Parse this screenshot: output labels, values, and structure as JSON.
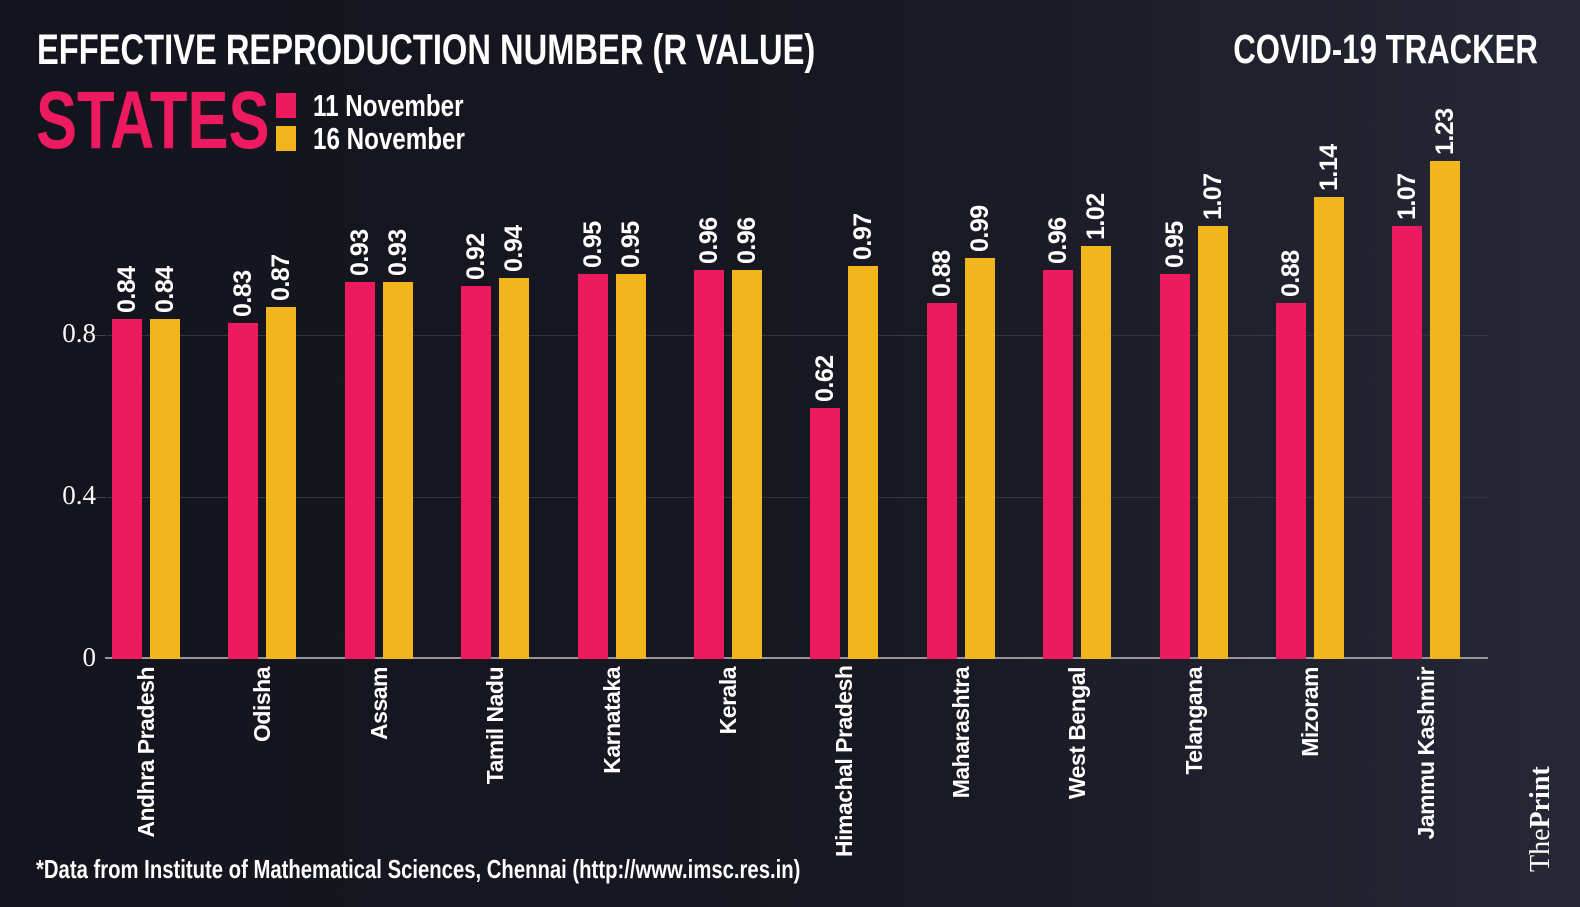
{
  "header": {
    "title": "EFFECTIVE REPRODUCTION NUMBER (R VALUE)",
    "tracker": "COVID-19 TRACKER",
    "subtitle": "STATES"
  },
  "legend": [
    {
      "label": "11 November",
      "color": "#ED1A5F"
    },
    {
      "label": "16 November",
      "color": "#F2B51D"
    }
  ],
  "chart_data": {
    "type": "bar",
    "title": "EFFECTIVE REPRODUCTION NUMBER (R VALUE) — STATES",
    "categories": [
      "Andhra Pradesh",
      "Odisha",
      "Assam",
      "Tamil Nadu",
      "Karnataka",
      "Kerala",
      "Himachal Pradesh",
      "Maharashtra",
      "West Bengal",
      "Telangana",
      "Mizoram",
      "Jammu Kashmir"
    ],
    "series": [
      {
        "name": "11 November",
        "color": "#ED1A5F",
        "values": [
          0.84,
          0.83,
          0.93,
          0.92,
          0.95,
          0.96,
          0.62,
          0.88,
          0.96,
          0.95,
          0.88,
          1.07
        ]
      },
      {
        "name": "16 November",
        "color": "#F2B51D",
        "values": [
          0.84,
          0.87,
          0.93,
          0.94,
          0.95,
          0.96,
          0.97,
          0.99,
          1.02,
          1.07,
          1.14,
          1.23
        ]
      }
    ],
    "xlabel": "",
    "ylabel": "",
    "yticks": [
      0,
      0.4,
      0.8
    ],
    "ytick_labels": [
      "0",
      "0.4",
      "0.8"
    ],
    "ylim": [
      0,
      1.3
    ],
    "grid": "horizontal",
    "bar_value_labels": true,
    "value_label_orientation": "rotated-90",
    "legend_position": "top-left"
  },
  "footer": {
    "source": "*Data from Institute of Mathematical Sciences, Chennai (http://www.imsc.res.in)"
  },
  "branding": {
    "name_regular": "The",
    "name_bold": "Print"
  },
  "colors": {
    "background_left": "#13141D",
    "background_right": "#262836",
    "accent_pink": "#ED1A5F",
    "accent_yellow": "#F2B51D",
    "text": "#FFFFFF",
    "gridline": "#34353F",
    "axis": "#96959B"
  }
}
